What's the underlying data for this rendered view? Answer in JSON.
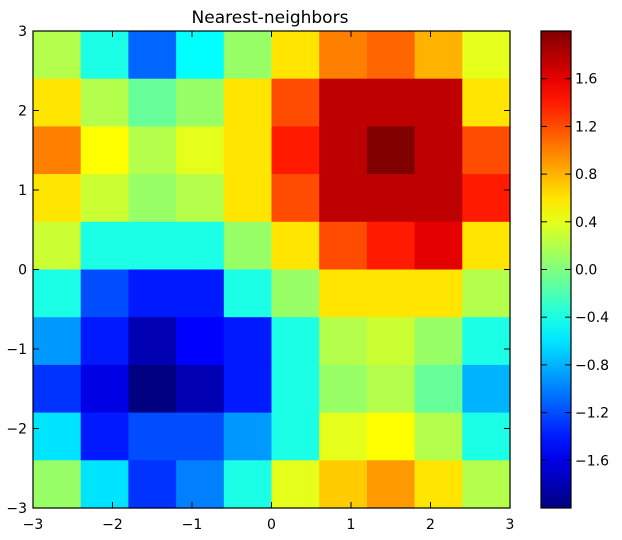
{
  "chart_data": {
    "type": "heatmap",
    "title": "Nearest-neighbors",
    "xlabel": "",
    "ylabel": "",
    "xlim": [
      -3,
      3
    ],
    "ylim": [
      -3,
      3
    ],
    "x_ticks": [
      "−3",
      "−2",
      "−1",
      "0",
      "1",
      "2",
      "3"
    ],
    "y_ticks": [
      "3",
      "2",
      "1",
      "0",
      "−1",
      "−2",
      "−3"
    ],
    "colorbar": {
      "colormap": "jet",
      "range": [
        -2.0,
        2.0
      ],
      "ticks": [
        "1.6",
        "1.2",
        "0.8",
        "0.4",
        "0.0",
        "−0.4",
        "−0.8",
        "−1.2",
        "−1.6"
      ]
    },
    "grid": false,
    "grid_rows_top_to_bottom": [
      [
        0.2,
        -0.4,
        -1.1,
        -0.5,
        0.1,
        0.6,
        1.0,
        1.1,
        0.8,
        0.4
      ],
      [
        0.6,
        0.2,
        -0.1,
        0.1,
        0.6,
        1.2,
        1.75,
        1.75,
        1.75,
        0.6
      ],
      [
        1.0,
        0.5,
        0.2,
        0.4,
        0.6,
        1.4,
        1.75,
        2.0,
        1.75,
        1.2
      ],
      [
        0.6,
        0.3,
        0.1,
        0.2,
        0.6,
        1.2,
        1.75,
        1.75,
        1.75,
        1.4
      ],
      [
        0.3,
        -0.4,
        -0.4,
        -0.4,
        0.1,
        0.6,
        1.2,
        1.4,
        1.6,
        0.6
      ],
      [
        -0.4,
        -1.2,
        -1.4,
        -1.4,
        -0.4,
        0.1,
        0.6,
        0.6,
        0.6,
        0.2
      ],
      [
        -0.9,
        -1.4,
        -1.8,
        -1.5,
        -1.4,
        -0.4,
        0.2,
        0.3,
        0.1,
        -0.4
      ],
      [
        -1.3,
        -1.6,
        -2.0,
        -1.8,
        -1.4,
        -0.4,
        0.1,
        0.2,
        -0.1,
        -0.8
      ],
      [
        -0.6,
        -1.4,
        -1.2,
        -1.2,
        -0.9,
        -0.4,
        0.4,
        0.5,
        0.2,
        -0.4
      ],
      [
        0.1,
        -0.6,
        -1.3,
        -1.0,
        -0.4,
        0.4,
        0.7,
        0.9,
        0.6,
        0.2
      ]
    ]
  }
}
